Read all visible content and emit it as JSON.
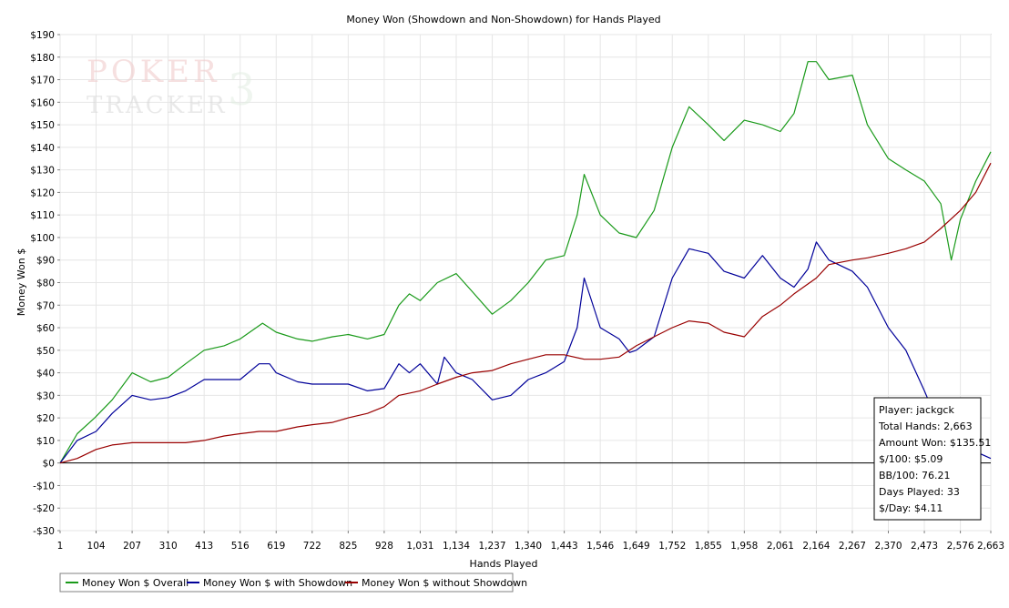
{
  "chart_data": {
    "type": "line",
    "title": "Money Won (Showdown and Non-Showdown) for Hands Played",
    "xlabel": "Hands Played",
    "ylabel": "Money Won $",
    "xlim": [
      1,
      2663
    ],
    "ylim": [
      -30,
      190
    ],
    "y_step": 10,
    "y_prefix": "$",
    "x_ticks": [
      1,
      104,
      207,
      310,
      413,
      516,
      619,
      722,
      825,
      928,
      1031,
      1134,
      1237,
      1340,
      1443,
      1546,
      1649,
      1752,
      1855,
      1958,
      2061,
      2164,
      2267,
      2370,
      2473,
      2576,
      2663
    ],
    "x_tick_labels": [
      "1",
      "104",
      "207",
      "310",
      "413",
      "516",
      "619",
      "722",
      "825",
      "928",
      "1,031",
      "1,134",
      "1,237",
      "1,340",
      "1,443",
      "1,546",
      "1,649",
      "1,752",
      "1,855",
      "1,958",
      "2,061",
      "2,164",
      "2,267",
      "2,370",
      "2,473",
      "2,576",
      "2,663"
    ],
    "grid": true,
    "legend_position": "bottom-left",
    "watermark": {
      "line1": "POKER",
      "line2": "TRACKER",
      "number": "3"
    },
    "colors": {
      "overall": "#1a9a1a",
      "showdown": "#000099",
      "non_showdown": "#990000",
      "zero_line": "#000000",
      "grid": "#e6e6e6"
    },
    "series": [
      {
        "name": "Money Won $ Overall",
        "color": "#1a9a1a",
        "x": [
          1,
          50,
          100,
          150,
          207,
          260,
          310,
          360,
          413,
          470,
          516,
          580,
          619,
          680,
          722,
          780,
          825,
          880,
          928,
          970,
          1000,
          1031,
          1080,
          1134,
          1180,
          1237,
          1290,
          1340,
          1390,
          1443,
          1480,
          1500,
          1546,
          1600,
          1649,
          1700,
          1752,
          1800,
          1855,
          1900,
          1958,
          2010,
          2061,
          2100,
          2140,
          2164,
          2200,
          2267,
          2310,
          2370,
          2420,
          2473,
          2520,
          2550,
          2576,
          2620,
          2663
        ],
        "y": [
          0,
          13,
          20,
          28,
          40,
          36,
          38,
          44,
          50,
          52,
          55,
          62,
          58,
          55,
          54,
          56,
          57,
          55,
          57,
          70,
          75,
          72,
          80,
          84,
          76,
          66,
          72,
          80,
          90,
          92,
          110,
          128,
          110,
          102,
          100,
          112,
          140,
          158,
          150,
          143,
          152,
          150,
          147,
          155,
          178,
          178,
          170,
          172,
          150,
          135,
          130,
          125,
          115,
          90,
          108,
          125,
          138
        ]
      },
      {
        "name": "Money Won $ with Showdown",
        "color": "#000099",
        "x": [
          1,
          50,
          104,
          150,
          207,
          260,
          310,
          360,
          413,
          470,
          516,
          570,
          600,
          619,
          680,
          722,
          780,
          825,
          880,
          928,
          970,
          1000,
          1031,
          1080,
          1100,
          1134,
          1180,
          1237,
          1290,
          1340,
          1390,
          1443,
          1480,
          1500,
          1546,
          1600,
          1630,
          1649,
          1700,
          1752,
          1800,
          1855,
          1900,
          1958,
          2010,
          2061,
          2100,
          2140,
          2164,
          2200,
          2267,
          2310,
          2370,
          2420,
          2473,
          2520,
          2576,
          2620,
          2663
        ],
        "y": [
          0,
          10,
          14,
          22,
          30,
          28,
          29,
          32,
          37,
          37,
          37,
          44,
          44,
          40,
          36,
          35,
          35,
          35,
          32,
          33,
          44,
          40,
          44,
          35,
          47,
          40,
          37,
          28,
          30,
          37,
          40,
          45,
          60,
          82,
          60,
          55,
          49,
          50,
          56,
          82,
          95,
          93,
          85,
          82,
          92,
          82,
          78,
          86,
          98,
          90,
          85,
          78,
          60,
          50,
          32,
          15,
          8,
          5,
          2
        ]
      },
      {
        "name": "Money Won $ without Showdown",
        "color": "#990000",
        "x": [
          1,
          50,
          104,
          150,
          207,
          260,
          310,
          360,
          413,
          470,
          516,
          570,
          619,
          680,
          722,
          780,
          825,
          880,
          928,
          970,
          1031,
          1080,
          1134,
          1180,
          1237,
          1290,
          1340,
          1390,
          1443,
          1500,
          1546,
          1600,
          1649,
          1700,
          1752,
          1800,
          1855,
          1900,
          1958,
          2010,
          2061,
          2100,
          2164,
          2200,
          2267,
          2310,
          2370,
          2420,
          2473,
          2520,
          2576,
          2620,
          2663
        ],
        "y": [
          0,
          2,
          6,
          8,
          9,
          9,
          9,
          9,
          10,
          12,
          13,
          14,
          14,
          16,
          17,
          18,
          20,
          22,
          25,
          30,
          32,
          35,
          38,
          40,
          41,
          44,
          46,
          48,
          48,
          46,
          46,
          47,
          52,
          56,
          60,
          63,
          62,
          58,
          56,
          65,
          70,
          75,
          82,
          88,
          90,
          91,
          93,
          95,
          98,
          104,
          112,
          120,
          133
        ]
      }
    ]
  },
  "stats_box": {
    "player": "Player: jackgck",
    "total_hands": "Total Hands: 2,663",
    "amount_won": "Amount Won: $135.51",
    "per_100": "$/100: $5.09",
    "bb_100": "BB/100: 76.21",
    "days_played": "Days Played: 33",
    "per_day": "$/Day: $4.11"
  }
}
